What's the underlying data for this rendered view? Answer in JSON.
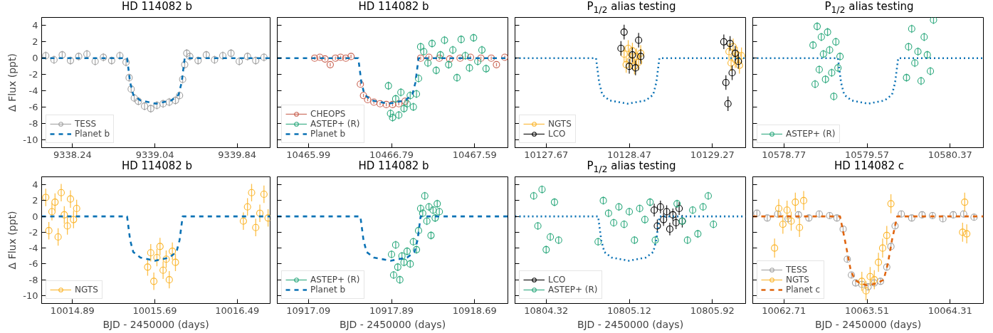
{
  "chart_data": [
    {
      "type": "scatter",
      "title": "HD 114082 b",
      "ylabel": "Δ Flux (ppt)",
      "xlim": [
        9337.94,
        9340.16
      ],
      "xticks": [
        9338.24,
        9339.04,
        9339.84
      ],
      "ylim": [
        -11,
        5
      ],
      "yticks": [
        -10,
        -8,
        -6,
        -4,
        -2,
        0,
        2,
        4
      ],
      "legend": "bottom left",
      "marker": "circle",
      "series": [
        {
          "name": "TESS",
          "color": "#a0a0a0",
          "x": [
            9337.98,
            9338.06,
            9338.14,
            9338.22,
            9338.3,
            9338.38,
            9338.46,
            9338.54,
            9338.62,
            9338.7,
            9338.76,
            9338.79,
            9338.81,
            9338.84,
            9338.88,
            9338.94,
            9339.0,
            9339.06,
            9339.12,
            9339.18,
            9339.24,
            9339.28,
            9339.31,
            9339.33,
            9339.35,
            9339.38,
            9339.46,
            9339.54,
            9339.62,
            9339.7,
            9339.78,
            9339.86,
            9339.94,
            9340.02,
            9340.1
          ],
          "values": [
            0.3,
            -0.2,
            0.4,
            -0.3,
            0.2,
            0.5,
            -0.4,
            0.1,
            -0.3,
            0.3,
            -0.5,
            -2.4,
            -3.8,
            -4.9,
            -5.3,
            -5.9,
            -6.2,
            -5.8,
            -5.6,
            -5.4,
            -5.2,
            -4.6,
            -2.6,
            -0.8,
            0.6,
            0.2,
            -0.3,
            0.4,
            -0.2,
            0.3,
            0.6,
            -0.4,
            0.2,
            -0.3,
            0.1
          ],
          "errors": [
            0.5,
            0.5,
            0.5,
            0.5,
            0.5,
            0.5,
            0.5,
            0.5,
            0.5,
            0.5,
            0.5,
            0.5,
            0.5,
            0.5,
            0.5,
            0.5,
            0.5,
            0.5,
            0.5,
            0.5,
            0.5,
            0.5,
            0.5,
            0.5,
            0.5,
            0.5,
            0.5,
            0.5,
            0.5,
            0.5,
            0.5,
            0.5,
            0.5,
            0.5,
            0.5
          ]
        },
        {
          "type": "line",
          "name": "Planet b",
          "color": "#0b72b5",
          "line_style": "dashed",
          "marker": "none",
          "x": [
            9337.94,
            9338.77,
            9338.8,
            9338.83,
            9338.9,
            9339.05,
            9339.2,
            9339.27,
            9339.3,
            9339.33,
            9340.16
          ],
          "values": [
            0,
            0,
            -3,
            -4.5,
            -5.2,
            -5.6,
            -5.2,
            -4.5,
            -3,
            0,
            0
          ]
        }
      ]
    },
    {
      "type": "scatter",
      "title": "HD 114082 b",
      "xlim": [
        10465.69,
        10467.91
      ],
      "xticks": [
        10465.99,
        10466.79,
        10467.59
      ],
      "ylim": [
        -11,
        5
      ],
      "yticks": [
        -10,
        -8,
        -6,
        -4,
        -2,
        0,
        2,
        4
      ],
      "tick_labels": "x",
      "legend": "bottom left",
      "marker": "circle",
      "series": [
        {
          "name": "CHEOPS",
          "color": "#c8604f",
          "x": [
            10466.05,
            10466.1,
            10466.15,
            10466.2,
            10466.25,
            10466.3,
            10466.35,
            10466.4,
            10466.49,
            10466.52,
            10466.56,
            10466.62,
            10466.68,
            10466.74,
            10466.8,
            10466.86,
            10466.92,
            10467.07,
            10467.15,
            10467.25,
            10467.35,
            10467.45,
            10467.55,
            10467.65,
            10467.75,
            10467.8,
            10467.88
          ],
          "values": [
            0,
            0.1,
            -0.1,
            -0.8,
            0,
            0.1,
            0,
            0.2,
            -3.2,
            -4.6,
            -5.1,
            -5.4,
            -5.6,
            -5.7,
            -5.7,
            -5.6,
            -5.3,
            0,
            0.1,
            0,
            -0.1,
            0,
            0.1,
            0,
            0,
            -0.8,
            0.1
          ],
          "errors": [
            0.2,
            0.2,
            0.2,
            0.2,
            0.2,
            0.2,
            0.2,
            0.2,
            0.2,
            0.2,
            0.2,
            0.2,
            0.2,
            0.2,
            0.2,
            0.2,
            0.2,
            0.2,
            0.2,
            0.2,
            0.2,
            0.2,
            0.2,
            0.2,
            0.2,
            0.2,
            0.2
          ]
        },
        {
          "name": "ASTEP+ (R)",
          "color": "#2aa87c",
          "x": [
            10466.76,
            10466.78,
            10466.8,
            10466.83,
            10466.86,
            10466.88,
            10466.91,
            10466.94,
            10466.97,
            10467.0,
            10467.03,
            10467.05,
            10467.07,
            10467.1,
            10467.14,
            10467.18,
            10467.22,
            10467.26,
            10467.3,
            10467.34,
            10467.38,
            10467.42,
            10467.46,
            10467.5,
            10467.54,
            10467.58,
            10467.62,
            10467.66,
            10467.7
          ],
          "values": [
            -3.4,
            -6.8,
            -7.3,
            -5.0,
            -7.0,
            -4.2,
            -6.2,
            -5.6,
            -4.6,
            -6.0,
            -4.4,
            -2.5,
            1.4,
            0.8,
            -0.6,
            1.8,
            -1.5,
            0.4,
            2.2,
            -0.8,
            1.0,
            -2.4,
            2.3,
            0.3,
            -1.2,
            2.5,
            -0.4,
            1.0,
            -1.3
          ],
          "errors": [
            0.5,
            0.5,
            0.5,
            0.5,
            0.5,
            0.5,
            0.5,
            0.5,
            0.5,
            0.5,
            0.5,
            0.5,
            0.5,
            0.5,
            0.5,
            0.5,
            0.5,
            0.5,
            0.5,
            0.5,
            0.5,
            0.5,
            0.5,
            0.5,
            0.5,
            0.5,
            0.5,
            0.5,
            0.5
          ]
        },
        {
          "type": "line",
          "name": "Planet b",
          "color": "#0b72b5",
          "line_style": "dashed",
          "marker": "none",
          "x": [
            10465.69,
            10466.47,
            10466.5,
            10466.53,
            10466.6,
            10466.76,
            10466.92,
            10466.99,
            10467.02,
            10467.05,
            10467.91
          ],
          "values": [
            0,
            0,
            -3,
            -4.5,
            -5.2,
            -5.6,
            -5.2,
            -4.5,
            -3,
            0,
            0
          ]
        }
      ]
    },
    {
      "type": "scatter",
      "title": "P$_{1/2}$ alias testing",
      "xlim": [
        10127.37,
        10129.59
      ],
      "xticks": [
        10127.67,
        10128.47,
        10129.27
      ],
      "ylim": [
        -11,
        5
      ],
      "yticks": [
        -10,
        -8,
        -6,
        -4,
        -2,
        0,
        2,
        4
      ],
      "tick_labels": "x",
      "legend": "bottom left",
      "marker": "circle",
      "series": [
        {
          "name": "NGTS",
          "color": "#fbb52b",
          "x": [
            10128.42,
            10128.44,
            10128.46,
            10128.48,
            10128.5,
            10128.52,
            10128.54,
            10128.56,
            10128.58,
            10129.43,
            10129.45,
            10129.47,
            10129.49,
            10129.51,
            10129.53,
            10129.55
          ],
          "values": [
            0.5,
            -0.8,
            1.2,
            -0.3,
            0.9,
            -1.0,
            0.2,
            -0.5,
            0.6,
            0.8,
            -0.6,
            1.4,
            -0.2,
            0.4,
            -0.9,
            0.3
          ],
          "errors": [
            1.0,
            1.0,
            1.0,
            1.0,
            1.0,
            1.0,
            1.0,
            1.0,
            1.0,
            1.0,
            1.0,
            1.0,
            1.0,
            1.0,
            1.0,
            1.0
          ]
        },
        {
          "name": "LCO",
          "color": "#000000",
          "x": [
            10128.42,
            10128.39,
            10128.47,
            10128.5,
            10128.53,
            10128.56,
            10128.58,
            10129.38,
            10129.4,
            10129.42,
            10129.44,
            10129.46,
            10129.49,
            10129.52
          ],
          "values": [
            3.2,
            1.2,
            -1.0,
            0.4,
            -1.2,
            2.2,
            0.2,
            2.0,
            -3.0,
            -5.6,
            1.8,
            -1.8,
            0.6,
            -0.4
          ],
          "errors": [
            0.9,
            0.9,
            0.9,
            0.9,
            0.9,
            0.9,
            0.9,
            0.9,
            0.9,
            0.9,
            0.9,
            0.9,
            0.9,
            0.9
          ]
        },
        {
          "type": "line",
          "color": "#0b72b5",
          "line_style": "dotted",
          "marker": "none",
          "x": [
            10127.37,
            10128.15,
            10128.18,
            10128.21,
            10128.28,
            10128.455,
            10128.63,
            10128.7,
            10128.73,
            10128.76,
            10129.59
          ],
          "values": [
            0,
            0,
            -3,
            -4.5,
            -5.2,
            -5.6,
            -5.2,
            -4.5,
            -3,
            0,
            0
          ]
        }
      ]
    },
    {
      "type": "scatter",
      "title": "P$_{1/2}$ alias testing",
      "xlim": [
        10578.47,
        10580.69
      ],
      "xticks": [
        10578.77,
        10579.57,
        10580.37
      ],
      "ylim": [
        -11,
        5
      ],
      "yticks": [
        -10,
        -8,
        -6,
        -4,
        -2,
        0,
        2,
        4
      ],
      "tick_labels": "x",
      "legend": "bottom left",
      "marker": "circle",
      "series": [
        {
          "name": "ASTEP+ (R)",
          "color": "#2aa87c",
          "x": [
            10579.05,
            10579.07,
            10579.09,
            10579.11,
            10579.13,
            10579.15,
            10579.17,
            10579.19,
            10579.21,
            10579.23,
            10579.25,
            10579.27,
            10579.29,
            10579.31,
            10579.95,
            10579.97,
            10580.0,
            10580.03,
            10580.06,
            10580.09,
            10580.12,
            10580.15,
            10580.18,
            10580.21
          ],
          "values": [
            1.6,
            -3.2,
            3.9,
            -1.4,
            2.6,
            0.5,
            -2.6,
            3.2,
            1.0,
            -1.8,
            -4.7,
            2.0,
            -1.2,
            0.2,
            -2.4,
            1.4,
            3.6,
            -0.6,
            0.8,
            -2.8,
            2.6,
            0.4,
            -1.6,
            4.7
          ],
          "errors": [
            0.5,
            0.5,
            0.5,
            0.5,
            0.5,
            0.5,
            0.5,
            0.5,
            0.5,
            0.5,
            0.5,
            0.5,
            0.5,
            0.5,
            0.5,
            0.5,
            0.5,
            0.5,
            0.5,
            0.5,
            0.5,
            0.5,
            0.5,
            0.5
          ]
        },
        {
          "type": "line",
          "color": "#0b72b5",
          "line_style": "dotted",
          "marker": "none",
          "x": [
            10578.47,
            10579.29,
            10579.32,
            10579.35,
            10579.42,
            10579.58,
            10579.74,
            10579.81,
            10579.84,
            10579.87,
            10580.69
          ],
          "values": [
            0,
            0,
            -3,
            -4.5,
            -5.2,
            -5.6,
            -5.2,
            -4.5,
            -3,
            0,
            0
          ]
        }
      ]
    },
    {
      "type": "scatter",
      "title": "HD 114082 b",
      "xlabel": "BJD - 2450000 (days)",
      "ylabel": "Δ Flux (ppt)",
      "xlim": [
        10014.59,
        10016.81
      ],
      "xticks": [
        10014.89,
        10015.69,
        10016.49
      ],
      "ylim": [
        -11,
        5
      ],
      "yticks": [
        -10,
        -8,
        -6,
        -4,
        -2,
        0,
        2,
        4
      ],
      "legend": "bottom left",
      "marker": "circle",
      "series": [
        {
          "name": "NGTS",
          "color": "#fbb52b",
          "x": [
            10014.63,
            10014.66,
            10014.69,
            10014.72,
            10014.75,
            10014.78,
            10014.81,
            10014.84,
            10014.87,
            10014.9,
            10014.93,
            10015.62,
            10015.65,
            10015.68,
            10015.71,
            10015.74,
            10015.77,
            10015.8,
            10015.83,
            10015.86,
            10015.89,
            10016.55,
            10016.59,
            10016.63,
            10016.67,
            10016.71,
            10016.75,
            10016.79
          ],
          "values": [
            2.4,
            -1.8,
            0.6,
            1.8,
            -2.6,
            3.0,
            0.2,
            -1.2,
            2.2,
            -0.4,
            1.0,
            -6.4,
            -4.6,
            -8.2,
            -5.2,
            -3.8,
            -6.8,
            -5.4,
            -8.0,
            -4.4,
            -5.8,
            -0.6,
            1.2,
            3.0,
            -1.4,
            0.4,
            2.8,
            -0.2
          ],
          "errors": [
            1.1,
            1.1,
            1.1,
            1.1,
            1.1,
            1.1,
            1.1,
            1.1,
            1.1,
            1.1,
            1.1,
            1.1,
            1.1,
            1.1,
            1.1,
            1.1,
            1.1,
            1.1,
            1.1,
            1.1,
            1.1,
            1.1,
            1.1,
            1.1,
            1.1,
            1.1,
            1.1,
            1.1
          ]
        },
        {
          "type": "line",
          "color": "#0b72b5",
          "line_style": "dashed",
          "marker": "none",
          "x": [
            10014.59,
            10015.42,
            10015.45,
            10015.48,
            10015.55,
            10015.69,
            10015.83,
            10015.9,
            10015.93,
            10015.96,
            10016.81
          ],
          "values": [
            0,
            0,
            -3,
            -4.5,
            -5.2,
            -5.6,
            -5.2,
            -4.5,
            -3,
            0,
            0
          ]
        }
      ]
    },
    {
      "type": "scatter",
      "title": "HD 114082 b",
      "xlabel": "BJD - 2450000 (days)",
      "xlim": [
        10916.79,
        10919.01
      ],
      "xticks": [
        10917.09,
        10917.89,
        10918.69
      ],
      "ylim": [
        -11,
        5
      ],
      "yticks": [
        -10,
        -8,
        -6,
        -4,
        -2,
        0,
        2,
        4
      ],
      "tick_labels": "x",
      "legend": "bottom left",
      "marker": "circle",
      "series": [
        {
          "name": "ASTEP+ (R)",
          "color": "#2aa87c",
          "x": [
            10917.89,
            10917.91,
            10917.93,
            10917.95,
            10917.97,
            10917.99,
            10918.01,
            10918.04,
            10918.07,
            10918.1,
            10918.13,
            10918.15,
            10918.17,
            10918.19,
            10918.21,
            10918.23,
            10918.25,
            10918.27,
            10918.29,
            10918.31,
            10918.33,
            10918.35
          ],
          "values": [
            -4.8,
            -7.4,
            -3.6,
            -6.4,
            -8.0,
            -5.0,
            -5.8,
            -4.4,
            -6.0,
            -3.2,
            -4.2,
            -1.8,
            1.0,
            0.4,
            2.6,
            -0.6,
            1.2,
            -2.4,
            0.8,
            -0.2,
            1.6,
            0.6
          ],
          "errors": [
            0.5,
            0.5,
            0.5,
            0.5,
            0.5,
            0.5,
            0.5,
            0.5,
            0.5,
            0.5,
            0.5,
            0.5,
            0.5,
            0.5,
            0.5,
            0.5,
            0.5,
            0.5,
            0.5,
            0.5,
            0.5,
            0.5
          ]
        },
        {
          "type": "line",
          "name": "Planet b",
          "color": "#0b72b5",
          "line_style": "dashed",
          "marker": "none",
          "x": [
            10916.79,
            10917.59,
            10917.62,
            10917.65,
            10917.72,
            10917.88,
            10918.04,
            10918.11,
            10918.14,
            10918.17,
            10919.01
          ],
          "values": [
            0,
            0,
            -3,
            -4.5,
            -5.2,
            -5.6,
            -5.2,
            -4.5,
            -3,
            0,
            0
          ]
        }
      ]
    },
    {
      "type": "scatter",
      "title": "P$_{1/2}$ alias testing",
      "xlabel": "BJD - 2450000 (days)",
      "xlim": [
        10804.02,
        10806.24
      ],
      "xticks": [
        10804.32,
        10805.12,
        10805.92
      ],
      "ylim": [
        -11,
        5
      ],
      "yticks": [
        -10,
        -8,
        -6,
        -4,
        -2,
        0,
        2,
        4
      ],
      "tick_labels": "x",
      "legend": "bottom left",
      "marker": "circle",
      "series": [
        {
          "name": "LCO",
          "color": "#000000",
          "x": [
            10805.36,
            10805.39,
            10805.42,
            10805.45,
            10805.48,
            10805.51,
            10805.54,
            10805.57,
            10805.6,
            10805.63
          ],
          "values": [
            0.8,
            -1.2,
            1.2,
            -0.4,
            0.6,
            -1.6,
            0.2,
            -0.8,
            1.0,
            -0.6
          ],
          "errors": [
            0.8,
            0.8,
            0.8,
            0.8,
            0.8,
            0.8,
            0.8,
            0.8,
            0.8,
            0.8
          ]
        },
        {
          "name": "ASTEP+ (R)",
          "color": "#2aa87c",
          "x": [
            10804.2,
            10804.24,
            10804.28,
            10804.32,
            10804.36,
            10804.4,
            10804.44,
            10804.82,
            10804.87,
            10804.92,
            10804.97,
            10805.02,
            10805.07,
            10805.12,
            10805.17,
            10805.22,
            10805.27,
            10805.32,
            10805.37,
            10805.58,
            10805.63,
            10805.68,
            10805.73,
            10805.78,
            10805.83,
            10805.88,
            10805.93
          ],
          "values": [
            2.6,
            -1.2,
            3.4,
            -4.2,
            -2.6,
            1.8,
            -3.0,
            -3.2,
            2.0,
            0.4,
            -0.8,
            1.2,
            -1.0,
            0.6,
            -3.0,
            1.0,
            -0.4,
            1.8,
            -3.0,
            1.6,
            -0.6,
            -3.0,
            0.8,
            -2.2,
            1.2,
            2.6,
            -1.0
          ],
          "errors": [
            0.5,
            0.5,
            0.5,
            0.5,
            0.5,
            0.5,
            0.5,
            0.5,
            0.5,
            0.5,
            0.5,
            0.5,
            0.5,
            0.5,
            0.5,
            0.5,
            0.5,
            0.5,
            0.5,
            0.5,
            0.5,
            0.5,
            0.5,
            0.5,
            0.5,
            0.5,
            0.5
          ]
        },
        {
          "type": "line",
          "color": "#0b72b5",
          "line_style": "dotted",
          "marker": "none",
          "x": [
            10804.02,
            10804.82,
            10804.85,
            10804.88,
            10804.95,
            10805.115,
            10805.28,
            10805.35,
            10805.38,
            10805.41,
            10806.24
          ],
          "values": [
            0,
            0,
            -3,
            -4.5,
            -5.2,
            -5.6,
            -5.2,
            -4.5,
            -3,
            0,
            0
          ]
        }
      ]
    },
    {
      "type": "scatter",
      "title": "HD 114082 c",
      "xlabel": "BJD - 2450000 (days)",
      "xlim": [
        10062.41,
        10064.63
      ],
      "xticks": [
        10062.71,
        10063.51,
        10064.31
      ],
      "ylim": [
        -11,
        5
      ],
      "yticks": [
        -10,
        -8,
        -6,
        -4,
        -2,
        0,
        2,
        4
      ],
      "tick_labels": "x",
      "legend": "bottom left",
      "marker": "circle",
      "series": [
        {
          "name": "TESS",
          "color": "#a0a0a0",
          "x": [
            10062.45,
            10062.55,
            10062.65,
            10062.75,
            10062.85,
            10062.95,
            10063.05,
            10063.15,
            10063.22,
            10063.28,
            10063.32,
            10063.36,
            10063.4,
            10063.46,
            10063.52,
            10063.58,
            10063.64,
            10063.7,
            10063.74,
            10063.78,
            10063.84,
            10063.94,
            10064.04,
            10064.14,
            10064.24,
            10064.34,
            10064.44,
            10064.54
          ],
          "values": [
            0.4,
            -0.2,
            0.3,
            -0.3,
            0.2,
            -0.2,
            0.3,
            0.1,
            -0.2,
            -1.6,
            -5.4,
            -7.4,
            -8.4,
            -8.6,
            -8.9,
            -8.4,
            -8.2,
            -6.4,
            -3.8,
            -1.2,
            0.3,
            -0.2,
            0.2,
            0.1,
            -0.3,
            0.2,
            0.3,
            -0.1
          ],
          "errors": [
            0.4,
            0.4,
            0.4,
            0.4,
            0.4,
            0.4,
            0.4,
            0.4,
            0.4,
            0.4,
            0.4,
            0.4,
            0.4,
            0.4,
            0.4,
            0.4,
            0.4,
            0.4,
            0.4,
            0.4,
            0.4,
            0.4,
            0.4,
            0.4,
            0.4,
            0.4,
            0.4,
            0.4
          ]
        },
        {
          "name": "NGTS",
          "color": "#fbb52b",
          "x": [
            10062.62,
            10062.66,
            10062.7,
            10062.74,
            10062.78,
            10062.82,
            10062.86,
            10062.9,
            10063.46,
            10063.5,
            10063.54,
            10063.58,
            10063.62,
            10063.66,
            10063.7,
            10063.74,
            10064.43,
            10064.45,
            10064.47
          ],
          "values": [
            -4.0,
            1.0,
            -1.0,
            0.8,
            -0.6,
            1.8,
            -1.4,
            2.0,
            -8.2,
            -9.4,
            -7.6,
            -8.0,
            -5.8,
            -4.0,
            -2.4,
            1.6,
            -2.0,
            1.8,
            -2.2
          ],
          "errors": [
            1.2,
            1.2,
            1.2,
            1.2,
            1.2,
            1.2,
            1.2,
            1.2,
            1.2,
            1.2,
            1.2,
            1.2,
            1.2,
            1.2,
            1.2,
            1.2,
            1.2,
            1.2,
            1.2
          ]
        },
        {
          "type": "line",
          "name": "Planet c",
          "color": "#e0650f",
          "line_style": "dashed",
          "marker": "none",
          "x": [
            10062.41,
            10063.25,
            10063.3,
            10063.35,
            10063.39,
            10063.45,
            10063.51,
            10063.6,
            10063.67,
            10063.71,
            10063.75,
            10063.8,
            10064.63
          ],
          "values": [
            0,
            0,
            -3.2,
            -6.6,
            -8.0,
            -8.5,
            -8.7,
            -8.5,
            -8.0,
            -6.0,
            -3.0,
            0,
            0
          ]
        }
      ]
    }
  ]
}
